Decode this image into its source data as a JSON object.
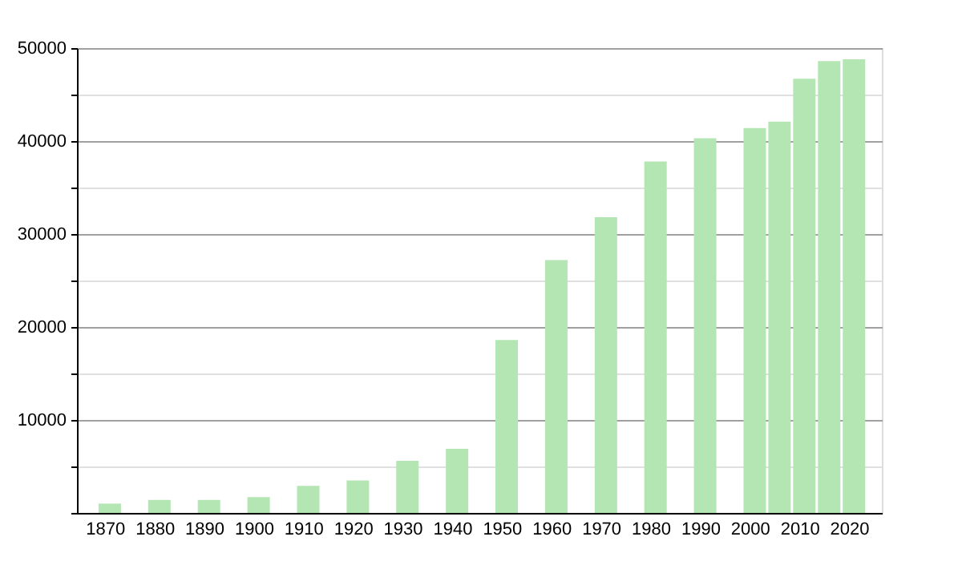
{
  "chart_data": {
    "type": "bar",
    "x": [
      1871,
      1881,
      1891,
      1901,
      1911,
      1921,
      1931,
      1941,
      1951,
      1961,
      1971,
      1981,
      1991,
      2001,
      2006,
      2011,
      2016,
      2021
    ],
    "values": [
      1000,
      1400,
      1400,
      1700,
      2900,
      3500,
      5600,
      6900,
      18600,
      27200,
      31800,
      37800,
      40300,
      41400,
      42100,
      46700,
      48600,
      48800
    ],
    "color": "#b3e6b3",
    "xlim": [
      1866,
      2025
    ],
    "xticks": [
      1870,
      1880,
      1890,
      1900,
      1910,
      1920,
      1930,
      1940,
      1950,
      1960,
      1970,
      1980,
      1990,
      2000,
      2010,
      2020
    ],
    "ylim": [
      0,
      50000
    ],
    "yticks": [
      {
        "value": 0,
        "label": null
      },
      {
        "value": 5000,
        "label": null
      },
      10000,
      {
        "value": 15000,
        "label": null
      },
      20000,
      {
        "value": 25000,
        "label": null
      },
      30000,
      {
        "value": 35000,
        "label": null
      },
      40000,
      {
        "value": 45000,
        "label": null
      },
      50000
    ],
    "grid": "y"
  }
}
